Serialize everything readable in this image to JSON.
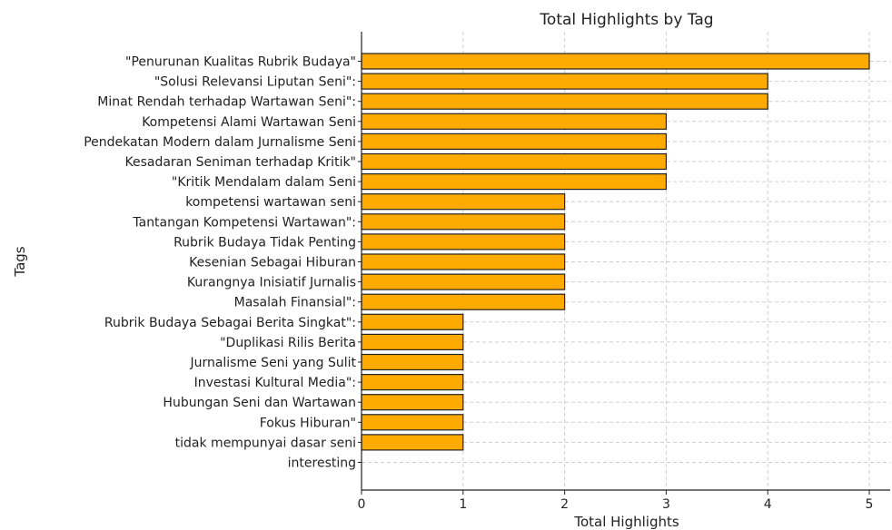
{
  "chart_data": {
    "type": "bar",
    "orientation": "horizontal",
    "title": "Total Highlights by Tag",
    "xlabel": "Total Highlights",
    "ylabel": "Tags",
    "xlim": [
      0,
      5.2
    ],
    "xticks": [
      "0",
      "1",
      "2",
      "3",
      "4",
      "5"
    ],
    "grid": true,
    "bar_color": "#FFAA00",
    "bar_edge_color": "#222222",
    "categories": [
      "\"Penurunan Kualitas Rubrik Budaya\"",
      "\"Solusi Relevansi Liputan Seni\":",
      "Minat Rendah terhadap Wartawan Seni\":",
      "Kompetensi Alami Wartawan Seni",
      "Pendekatan Modern dalam Jurnalisme Seni",
      "Kesadaran Seniman terhadap Kritik\"",
      "\"Kritik Mendalam dalam Seni",
      "kompetensi wartawan seni",
      "Tantangan Kompetensi Wartawan\":",
      "Rubrik Budaya Tidak Penting",
      "Kesenian Sebagai Hiburan",
      "Kurangnya Inisiatif Jurnalis",
      "Masalah Finansial\":",
      "Rubrik Budaya Sebagai Berita Singkat\":",
      "\"Duplikasi Rilis Berita",
      "Jurnalisme Seni yang Sulit",
      "Investasi Kultural Media\":",
      "Hubungan Seni dan Wartawan",
      "Fokus Hiburan\"",
      "tidak mempunyai dasar seni",
      "interesting"
    ],
    "values": [
      5,
      4,
      4,
      3,
      3,
      3,
      3,
      2,
      2,
      2,
      2,
      2,
      2,
      1,
      1,
      1,
      1,
      1,
      1,
      1,
      0
    ]
  }
}
